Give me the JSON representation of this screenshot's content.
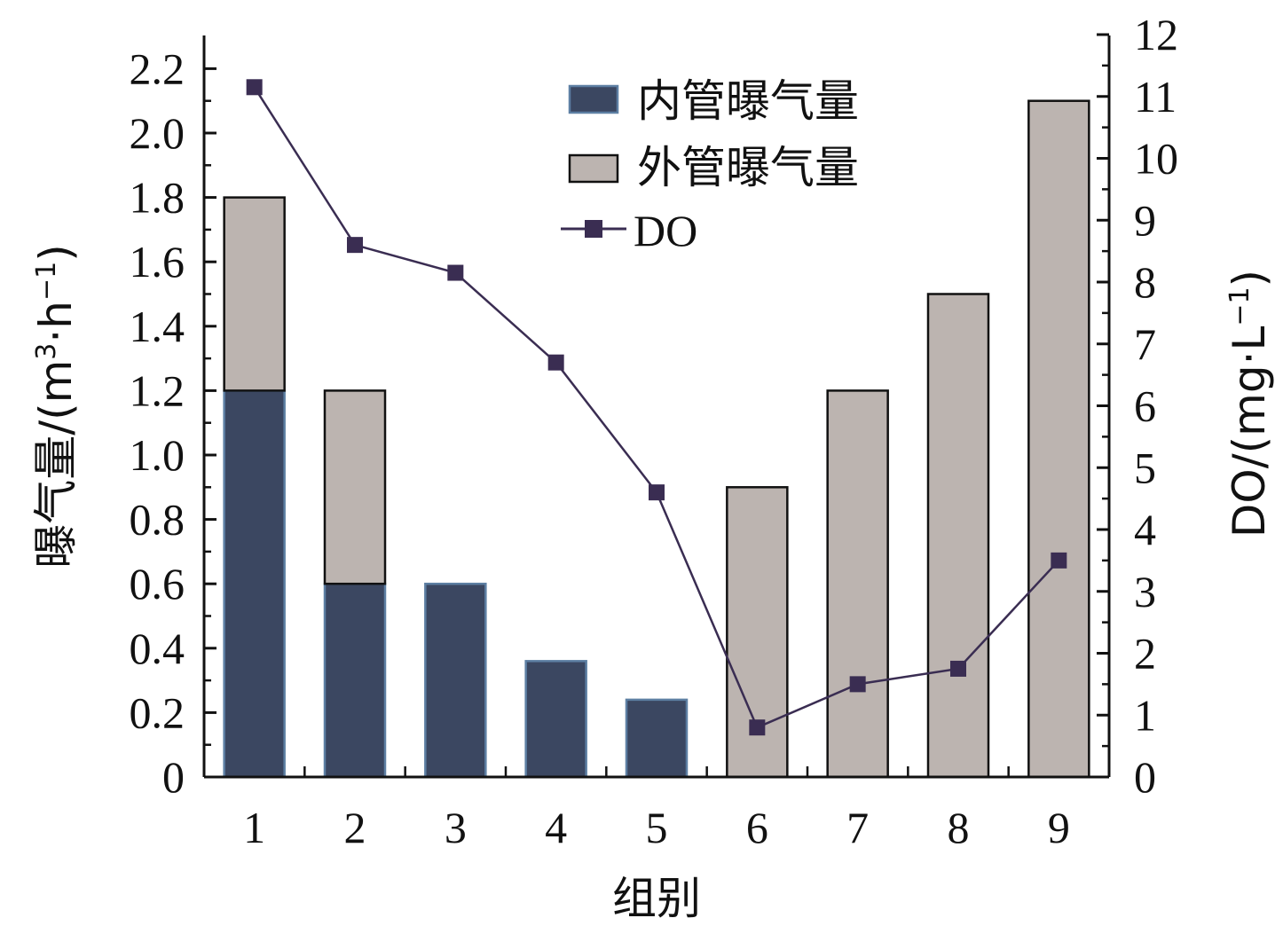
{
  "chart_data": {
    "type": "bar",
    "categories": [
      "1",
      "2",
      "3",
      "4",
      "5",
      "6",
      "7",
      "8",
      "9"
    ],
    "series": [
      {
        "name": "内管曝气量",
        "kind": "stacked-bar",
        "axis": "left",
        "color": "#3b4761",
        "values": [
          1.2,
          0.6,
          0.6,
          0.36,
          0.24,
          0,
          0,
          0,
          0
        ]
      },
      {
        "name": "外管曝气量",
        "kind": "stacked-bar",
        "axis": "left",
        "color": "#bcb4b0",
        "values": [
          0.6,
          0.6,
          0,
          0,
          0,
          0.9,
          1.2,
          1.5,
          2.1
        ]
      },
      {
        "name": "DO",
        "kind": "line",
        "axis": "right",
        "color": "#3a2d52",
        "values": [
          11.15,
          8.6,
          8.15,
          6.7,
          4.6,
          0.8,
          1.5,
          1.75,
          3.5
        ]
      }
    ],
    "xlabel": "组别",
    "ylabel": {
      "main": "曝气量/(m",
      "sup1": "3",
      "mid": "·h",
      "sup2": "−1",
      "end": ")"
    },
    "y2label": {
      "main": "DO/(mg·L",
      "sup": "−1",
      "end": ")"
    },
    "ylim": [
      0,
      2.3
    ],
    "y2lim": [
      0,
      12
    ],
    "yticks": [
      "0",
      "0.2",
      "0.4",
      "0.6",
      "0.8",
      "1.0",
      "1.2",
      "1.4",
      "1.6",
      "1.8",
      "2.0",
      "2.2"
    ],
    "y2ticks": [
      "0",
      "1",
      "2",
      "3",
      "4",
      "5",
      "6",
      "7",
      "8",
      "9",
      "10",
      "11",
      "12"
    ],
    "legend_position": "top-right"
  }
}
